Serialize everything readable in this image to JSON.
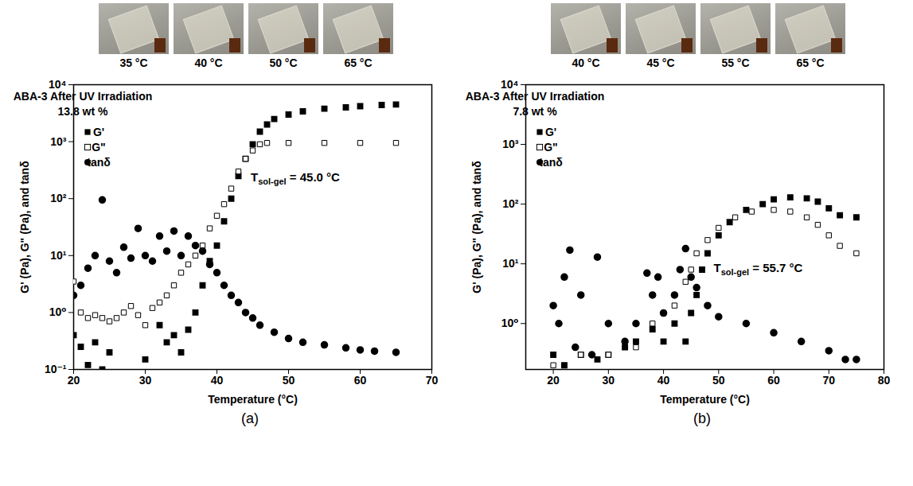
{
  "chart_data": [
    {
      "type": "scatter",
      "panel": "(a)",
      "photo_labels": [
        "35 °C",
        "40 °C",
        "50 °C",
        "65 °C"
      ],
      "title": "ABA-3 After UV Irradiation",
      "subtitle": "13.8 wt %",
      "annotation": {
        "text": "T",
        "subscript": "sol-gel",
        "after": " = 45.0 °C"
      },
      "x_label": "Temperature (°C)",
      "y_label": "G' (Pa), G\" (Pa), and tanδ",
      "log": "y",
      "legend": "top-left",
      "xlim": [
        20,
        70
      ],
      "xticks": [
        20,
        30,
        40,
        50,
        60,
        70
      ],
      "ylim": [
        0.1,
        10000
      ],
      "yticks": [
        {
          "value": 0.1,
          "label": "10⁻¹"
        },
        {
          "value": 1,
          "label": "10⁰"
        },
        {
          "value": 10,
          "label": "10¹"
        },
        {
          "value": 100,
          "label": "10²"
        },
        {
          "value": 1000,
          "label": "10³"
        },
        {
          "value": 10000,
          "label": "10⁴"
        }
      ],
      "series": [
        {
          "name": "G'",
          "color": "#000000",
          "marker": "square",
          "x": [
            20,
            21,
            22,
            23,
            24,
            25,
            30,
            32,
            33,
            34,
            35,
            36,
            37,
            38,
            39,
            40,
            41,
            42,
            43,
            44,
            45,
            46,
            47,
            48,
            50,
            52,
            55,
            58,
            60,
            63,
            65
          ],
          "values": [
            0.4,
            0.25,
            0.12,
            0.3,
            0.1,
            0.2,
            0.15,
            0.6,
            0.3,
            0.4,
            0.2,
            0.5,
            1,
            3,
            8,
            15,
            40,
            100,
            250,
            500,
            900,
            1500,
            2000,
            2500,
            3000,
            3400,
            3800,
            4000,
            4200,
            4400,
            4500
          ]
        },
        {
          "name": "G\"",
          "color": "#000000",
          "marker": "square-open",
          "x": [
            20,
            21,
            22,
            23,
            24,
            25,
            26,
            27,
            28,
            29,
            30,
            31,
            32,
            33,
            34,
            35,
            36,
            37,
            38,
            39,
            40,
            41,
            42,
            43,
            44,
            45,
            46,
            47,
            50,
            55,
            60,
            65
          ],
          "values": [
            3.5,
            1,
            0.8,
            0.9,
            0.8,
            0.7,
            0.8,
            1,
            1.3,
            0.9,
            0.6,
            1.2,
            1.5,
            2,
            3,
            5,
            7,
            10,
            15,
            30,
            50,
            80,
            150,
            300,
            500,
            700,
            900,
            950,
            950,
            950,
            950,
            950
          ]
        },
        {
          "name": "tanδ",
          "color": "#000000",
          "marker": "circle",
          "x": [
            20,
            21,
            22,
            23,
            24,
            25,
            26,
            27,
            28,
            29,
            30,
            31,
            32,
            33,
            34,
            35,
            36,
            37,
            38,
            39,
            40,
            41,
            42,
            43,
            44,
            45,
            46,
            48,
            50,
            52,
            55,
            58,
            60,
            62,
            65
          ],
          "values": [
            2,
            3,
            6,
            10,
            95,
            8,
            5,
            14,
            9,
            30,
            10,
            8,
            22,
            12,
            27,
            10,
            22,
            15,
            12,
            7,
            5,
            3,
            2,
            1.5,
            1,
            0.8,
            0.6,
            0.45,
            0.35,
            0.3,
            0.27,
            0.24,
            0.22,
            0.21,
            0.2
          ]
        }
      ]
    },
    {
      "type": "scatter",
      "panel": "(b)",
      "photo_labels": [
        "40 °C",
        "45 °C",
        "55 °C",
        "65 °C"
      ],
      "title": "ABA-3 After UV Irradiation",
      "subtitle": "7.8 wt %",
      "annotation": {
        "text": "T",
        "subscript": "sol-gel",
        "after": " = 55.7 °C"
      },
      "x_label": "Temperature (°C)",
      "y_label": "G' (Pa), G\" (Pa), and tanδ",
      "log": "y",
      "legend": "top-left",
      "xlim": [
        15,
        80
      ],
      "xticks": [
        20,
        30,
        40,
        50,
        60,
        70,
        80
      ],
      "ylim": [
        0.17,
        10000
      ],
      "yticks": [
        {
          "value": 1,
          "label": "10⁰"
        },
        {
          "value": 10,
          "label": "10¹"
        },
        {
          "value": 100,
          "label": "10²"
        },
        {
          "value": 1000,
          "label": "10³"
        },
        {
          "value": 10000,
          "label": "10⁴"
        }
      ],
      "series": [
        {
          "name": "G'",
          "color": "#000000",
          "marker": "square",
          "x": [
            20,
            22,
            25,
            28,
            30,
            33,
            35,
            38,
            40,
            42,
            44,
            45,
            46,
            47,
            48,
            50,
            52,
            55,
            58,
            60,
            63,
            66,
            68,
            70,
            72,
            75
          ],
          "values": [
            0.3,
            0.2,
            0.3,
            0.25,
            0.3,
            0.4,
            0.5,
            0.8,
            0.5,
            1,
            0.5,
            1.5,
            3,
            8,
            15,
            30,
            50,
            80,
            100,
            120,
            130,
            125,
            110,
            85,
            65,
            60
          ]
        },
        {
          "name": "G\"",
          "color": "#000000",
          "marker": "square-open",
          "x": [
            20,
            25,
            30,
            35,
            38,
            40,
            42,
            44,
            45,
            46,
            48,
            50,
            53,
            56,
            60,
            63,
            66,
            68,
            70,
            72,
            75
          ],
          "values": [
            0.2,
            0.3,
            0.3,
            0.4,
            1,
            1.5,
            2,
            5,
            8,
            15,
            25,
            40,
            60,
            75,
            80,
            75,
            60,
            45,
            30,
            20,
            15
          ]
        },
        {
          "name": "tanδ",
          "color": "#000000",
          "marker": "circle",
          "x": [
            20,
            21,
            22,
            23,
            24,
            25,
            27,
            28,
            30,
            33,
            35,
            37,
            38,
            39,
            40,
            42,
            43,
            44,
            45,
            46,
            48,
            50,
            55,
            60,
            65,
            70,
            73,
            75
          ],
          "values": [
            2,
            1,
            6,
            17,
            0.4,
            3,
            0.3,
            13,
            1,
            0.5,
            1,
            7,
            3,
            6,
            1.5,
            3,
            8,
            18,
            6,
            4,
            2,
            1.3,
            1,
            0.7,
            0.5,
            0.35,
            0.25,
            0.25
          ]
        }
      ]
    }
  ]
}
